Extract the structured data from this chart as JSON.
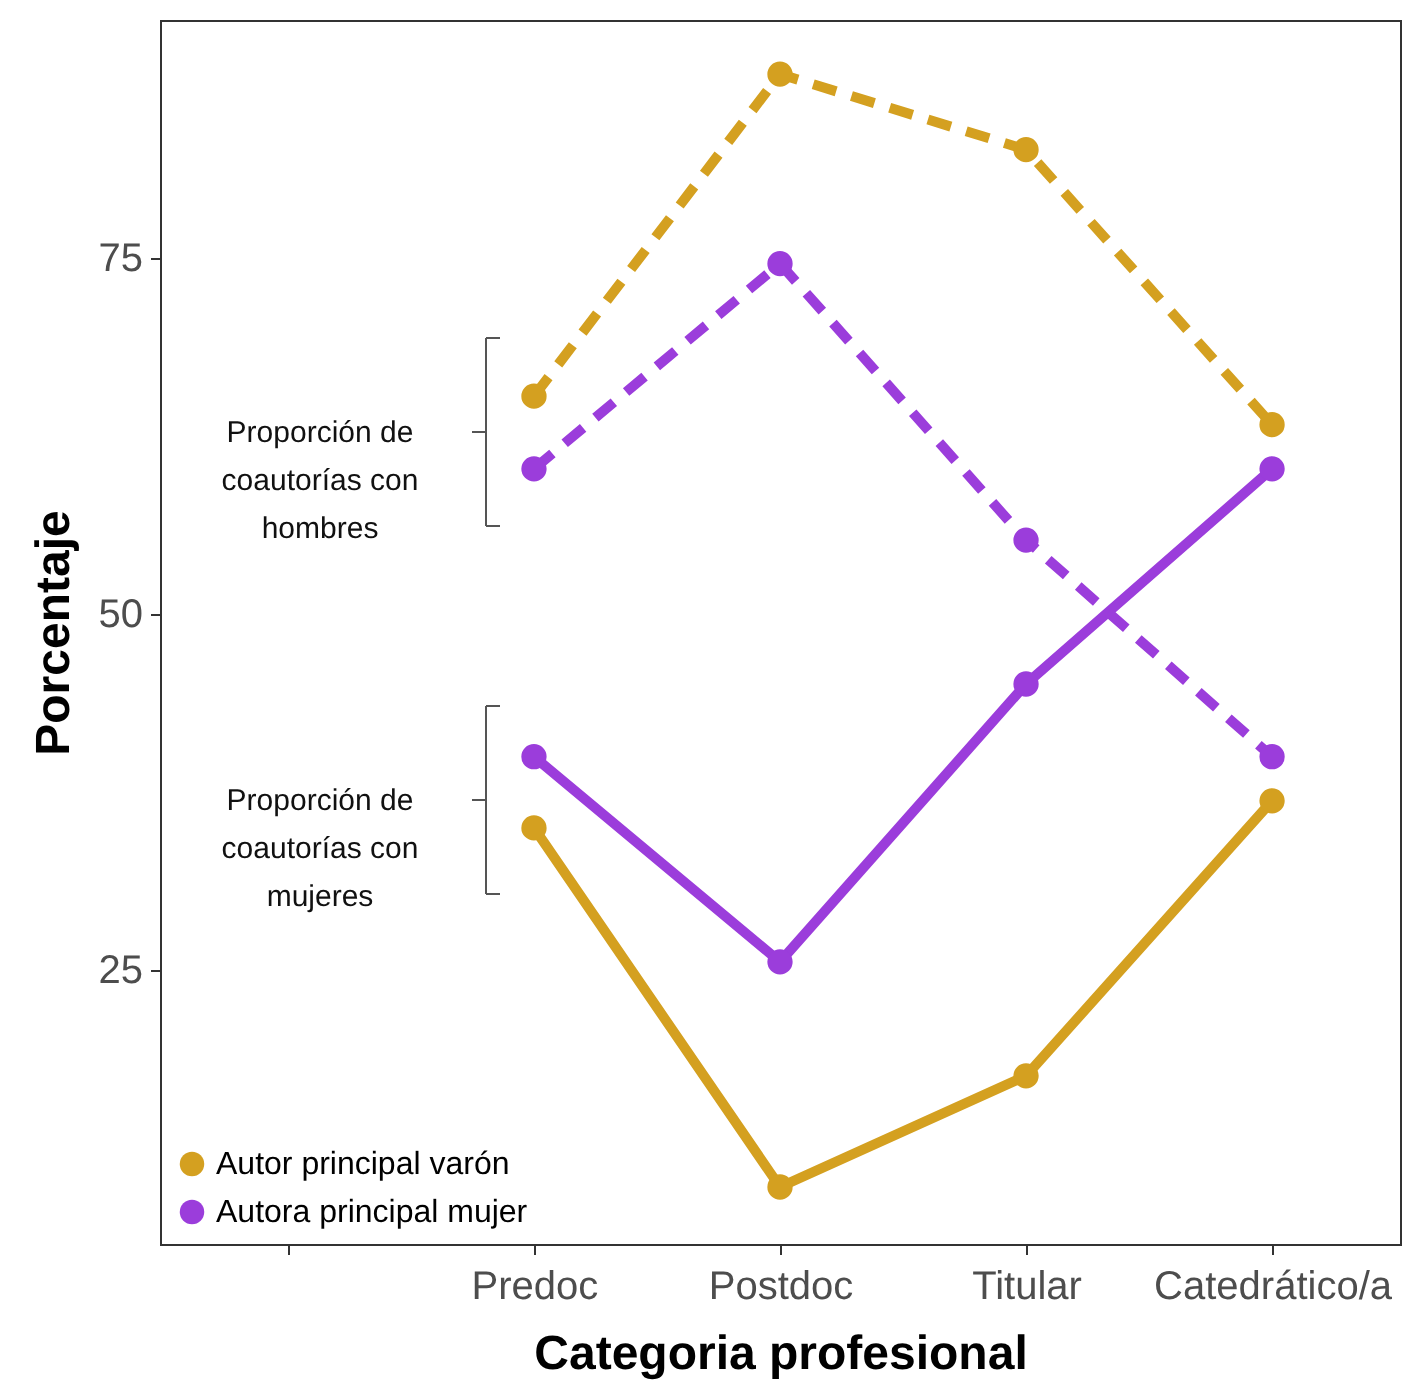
{
  "chart_data": {
    "type": "line",
    "xlabel": "Categoria profesional",
    "ylabel": "Porcentaje",
    "categories": [
      null,
      "Predoc",
      "Postdoc",
      "Titular",
      "Catedrático/a"
    ],
    "ylim": [
      5.8,
      91.7
    ],
    "yticks": [
      25,
      50,
      75
    ],
    "grid": false,
    "legend": "bottom left",
    "marker": "circle",
    "series": [
      {
        "name": "Autor principal varón",
        "color": "#d4a020",
        "line_style": "solid",
        "values": [
          null,
          35.0,
          9.8,
          17.6,
          36.9
        ]
      },
      {
        "name": "Autora principal mujer",
        "color": "#9b3ddb",
        "line_style": "solid",
        "values": [
          null,
          40.0,
          25.6,
          45.1,
          60.2
        ]
      },
      {
        "color": "#d4a020",
        "line_style": "dashed",
        "values": [
          null,
          65.3,
          87.9,
          82.6,
          63.3
        ]
      },
      {
        "color": "#9b3ddb",
        "line_style": "dashed",
        "values": [
          null,
          60.2,
          74.6,
          55.2,
          40.0
        ]
      }
    ],
    "annotations": [
      "Proporción de coautorías con hombres",
      "Proporción de coautorías con mujeres"
    ]
  }
}
